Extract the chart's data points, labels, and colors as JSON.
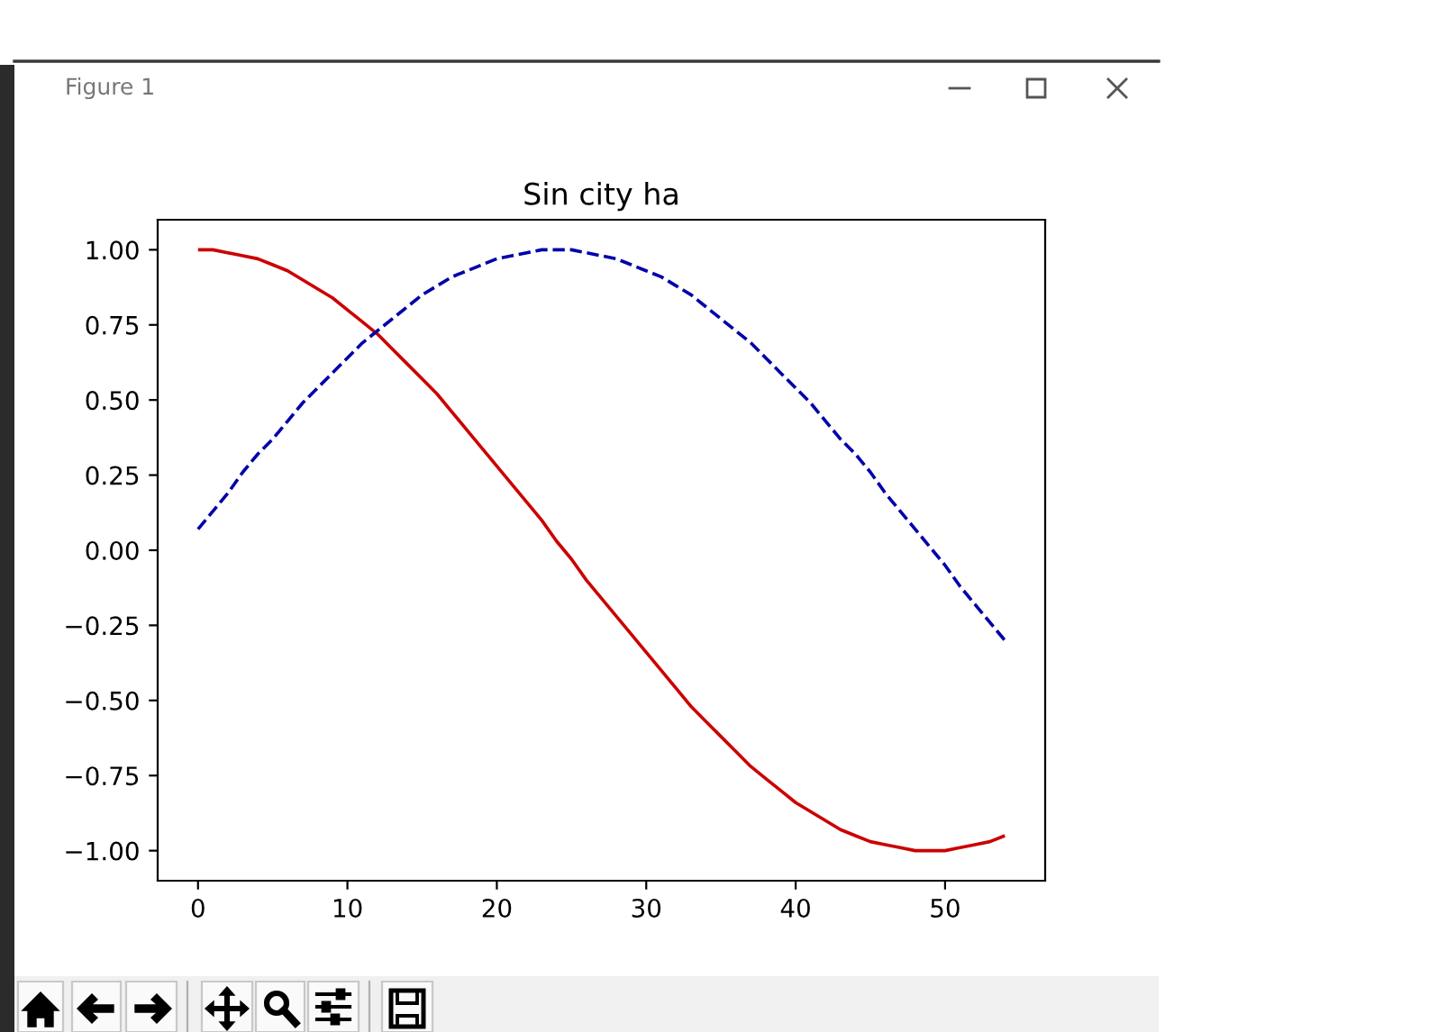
{
  "chart_data": {
    "type": "line",
    "title": "Sin city ha",
    "annotations": [
      "Figure 1"
    ],
    "x": [
      0,
      1,
      2,
      3,
      4,
      5,
      6,
      7,
      8,
      9,
      10,
      11,
      12,
      13,
      14,
      15,
      16,
      17,
      18,
      19,
      20,
      21,
      22,
      23,
      24,
      25,
      26,
      27,
      28,
      29,
      30,
      31,
      32,
      33,
      34,
      35,
      36,
      37,
      38,
      39,
      40,
      41,
      42,
      43,
      44,
      45,
      46,
      47,
      48,
      49,
      50,
      51,
      52,
      53,
      54
    ],
    "series": [
      {
        "color": "#cc0000",
        "line_style": "solid",
        "values": [
          1.0,
          1.0,
          0.99,
          0.98,
          0.97,
          0.95,
          0.93,
          0.9,
          0.87,
          0.84,
          0.8,
          0.76,
          0.72,
          0.67,
          0.62,
          0.57,
          0.52,
          0.46,
          0.4,
          0.34,
          0.28,
          0.22,
          0.16,
          0.1,
          0.03,
          -0.03,
          -0.1,
          -0.16,
          -0.22,
          -0.28,
          -0.34,
          -0.4,
          -0.46,
          -0.52,
          -0.57,
          -0.62,
          -0.67,
          -0.72,
          -0.76,
          -0.8,
          -0.84,
          -0.87,
          -0.9,
          -0.93,
          -0.95,
          -0.97,
          -0.98,
          -0.99,
          -1.0,
          -1.0,
          -1.0,
          -0.99,
          -0.98,
          -0.97,
          -0.95
        ]
      },
      {
        "color": "#0000aa",
        "line_style": "dashed",
        "values": [
          0.07,
          0.13,
          0.19,
          0.26,
          0.32,
          0.37,
          0.43,
          0.49,
          0.54,
          0.59,
          0.64,
          0.69,
          0.73,
          0.77,
          0.81,
          0.85,
          0.88,
          0.91,
          0.93,
          0.95,
          0.97,
          0.98,
          0.99,
          1.0,
          1.0,
          1.0,
          0.99,
          0.98,
          0.97,
          0.95,
          0.93,
          0.91,
          0.88,
          0.85,
          0.81,
          0.77,
          0.73,
          0.69,
          0.64,
          0.59,
          0.54,
          0.49,
          0.43,
          0.37,
          0.32,
          0.26,
          0.19,
          0.13,
          0.07,
          0.01,
          -0.05,
          -0.12,
          -0.18,
          -0.24,
          -0.3
        ]
      }
    ],
    "xlim": [
      -2.7,
      56.7
    ],
    "ylim": [
      -1.1,
      1.1
    ],
    "xticks": [
      0,
      10,
      20,
      30,
      40,
      50
    ],
    "yticks": [
      {
        "value": 1,
        "label": "1.00"
      },
      {
        "value": 0.75,
        "label": "0.75"
      },
      {
        "value": 0.5,
        "label": "0.50"
      },
      {
        "value": 0.25,
        "label": "0.25"
      },
      {
        "value": 0,
        "label": "0.00"
      },
      {
        "value": -0.25,
        "label": "−0.25"
      },
      {
        "value": -0.5,
        "label": "−0.50"
      },
      {
        "value": -0.75,
        "label": "−0.75"
      },
      {
        "value": -1,
        "label": "−1.00"
      }
    ],
    "marker": "none"
  }
}
